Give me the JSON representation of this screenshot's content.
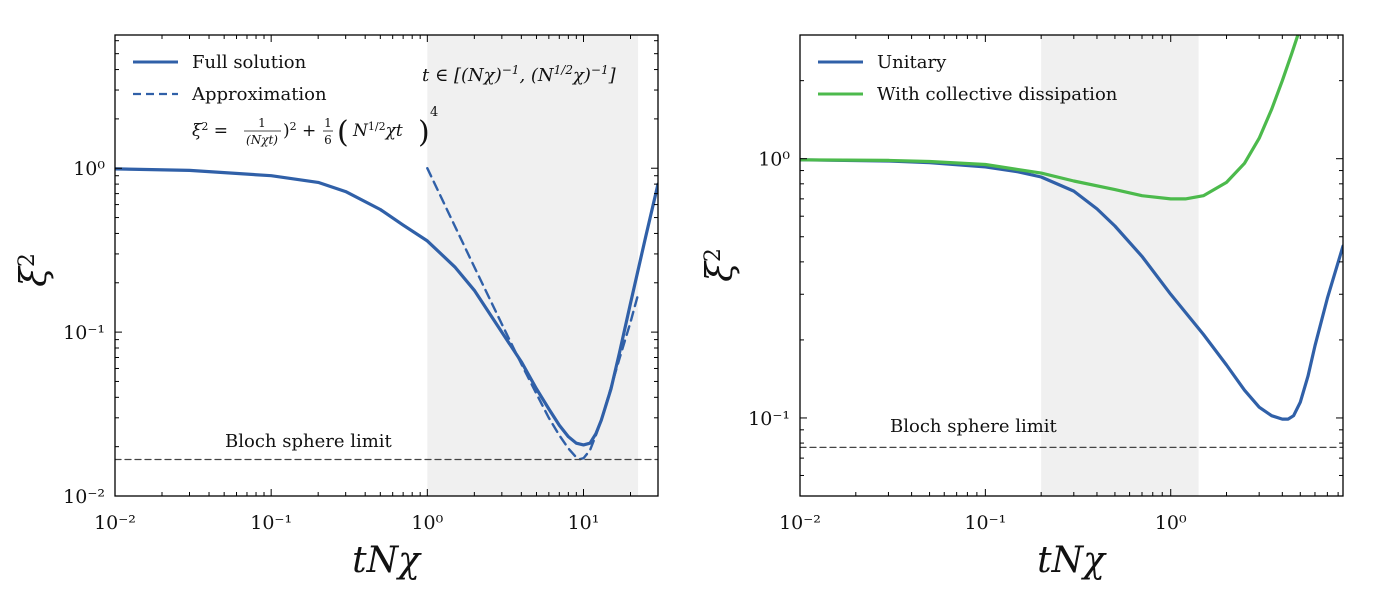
{
  "chart_data": [
    {
      "type": "line",
      "xscale": "log",
      "yscale": "log",
      "xlabel": "tNχ",
      "ylabel": "ξ²",
      "xlim": [
        0.01,
        30
      ],
      "ylim": [
        0.01,
        6.5
      ],
      "xticks": [
        0.01,
        0.1,
        1,
        10
      ],
      "xtick_labels": [
        "10⁻²",
        "10⁻¹",
        "10⁰",
        "10¹"
      ],
      "yticks": [
        0.01,
        0.1,
        1
      ],
      "ytick_labels": [
        "10⁻²",
        "10⁻¹",
        "10⁰"
      ],
      "shaded_region": {
        "x_start": 1,
        "x_end": 22.36,
        "label": "t ∈ [(Nχ)⁻¹, (N¹ᐟ²χ)⁻¹]"
      },
      "legend": {
        "position": "top-left",
        "entries": [
          "Full solution",
          "Approximation"
        ]
      },
      "formula": "ξ² = 1/(Nχt)² + 1/6 (N¹ᐟ²χt)⁴",
      "series": [
        {
          "name": "Full solution",
          "color": "#3060a8",
          "style": "solid",
          "x": [
            0.01,
            0.03,
            0.1,
            0.2,
            0.3,
            0.5,
            0.7,
            1,
            1.5,
            2,
            3,
            4,
            5,
            6,
            7,
            8,
            9,
            10,
            11,
            12,
            13,
            15,
            17,
            20,
            25,
            30
          ],
          "y": [
            0.99,
            0.97,
            0.9,
            0.82,
            0.72,
            0.56,
            0.45,
            0.36,
            0.25,
            0.18,
            0.1,
            0.066,
            0.045,
            0.034,
            0.027,
            0.023,
            0.021,
            0.0205,
            0.021,
            0.024,
            0.029,
            0.045,
            0.075,
            0.15,
            0.38,
            0.8
          ]
        },
        {
          "name": "Approximation",
          "color": "#3060a8",
          "style": "dashed",
          "x": [
            1,
            1.5,
            2,
            3,
            4,
            5,
            6,
            7,
            8,
            9,
            9.5,
            10,
            11,
            12,
            13,
            15,
            17,
            20,
            22.36
          ],
          "y": [
            1.0,
            0.444,
            0.25,
            0.112,
            0.064,
            0.042,
            0.03,
            0.0235,
            0.0195,
            0.0172,
            0.0168,
            0.017,
            0.019,
            0.0235,
            0.029,
            0.046,
            0.069,
            0.115,
            0.17
          ]
        },
        {
          "name": "Bloch sphere limit",
          "color": "#444444",
          "style": "dashed",
          "x": [
            0.01,
            30
          ],
          "y": [
            0.0167,
            0.0167
          ]
        }
      ],
      "annotations": [
        "Bloch sphere limit"
      ]
    },
    {
      "type": "line",
      "xscale": "log",
      "yscale": "log",
      "xlabel": "tNχ",
      "ylabel": "ξ²",
      "xlim": [
        0.01,
        8.5
      ],
      "ylim": [
        0.05,
        3.0
      ],
      "xticks": [
        0.01,
        0.1,
        1
      ],
      "xtick_labels": [
        "10⁻²",
        "10⁻¹",
        "10⁰"
      ],
      "yticks": [
        0.1,
        1
      ],
      "ytick_labels": [
        "10⁻¹",
        "10⁰"
      ],
      "shaded_region": {
        "x_start": 0.2,
        "x_end": 1.414
      },
      "legend": {
        "position": "top-left",
        "entries": [
          "Unitary",
          "With collective dissipation"
        ]
      },
      "series": [
        {
          "name": "Unitary",
          "color": "#3060a8",
          "style": "solid",
          "x": [
            0.01,
            0.03,
            0.05,
            0.1,
            0.15,
            0.2,
            0.3,
            0.4,
            0.5,
            0.7,
            1.0,
            1.5,
            2.0,
            2.5,
            3.0,
            3.5,
            4.0,
            4.3,
            4.6,
            5.0,
            5.5,
            6.0,
            7.0,
            8.5
          ],
          "y": [
            0.99,
            0.98,
            0.965,
            0.93,
            0.89,
            0.85,
            0.75,
            0.64,
            0.55,
            0.42,
            0.3,
            0.21,
            0.16,
            0.128,
            0.11,
            0.102,
            0.099,
            0.099,
            0.102,
            0.115,
            0.145,
            0.19,
            0.29,
            0.46
          ]
        },
        {
          "name": "With collective dissipation",
          "color": "#4cba4c",
          "style": "solid",
          "x": [
            0.01,
            0.03,
            0.05,
            0.1,
            0.2,
            0.3,
            0.5,
            0.7,
            1.0,
            1.2,
            1.5,
            2.0,
            2.5,
            3.0,
            3.5,
            4.0,
            4.5,
            5.0
          ],
          "y": [
            0.99,
            0.985,
            0.975,
            0.95,
            0.88,
            0.82,
            0.76,
            0.72,
            0.7,
            0.7,
            0.72,
            0.81,
            0.96,
            1.2,
            1.55,
            2.0,
            2.55,
            3.2
          ]
        },
        {
          "name": "Bloch sphere limit",
          "color": "#444444",
          "style": "dashed",
          "x": [
            0.01,
            8.5
          ],
          "y": [
            0.077,
            0.077
          ]
        }
      ],
      "annotations": [
        "Bloch sphere limit"
      ]
    }
  ]
}
